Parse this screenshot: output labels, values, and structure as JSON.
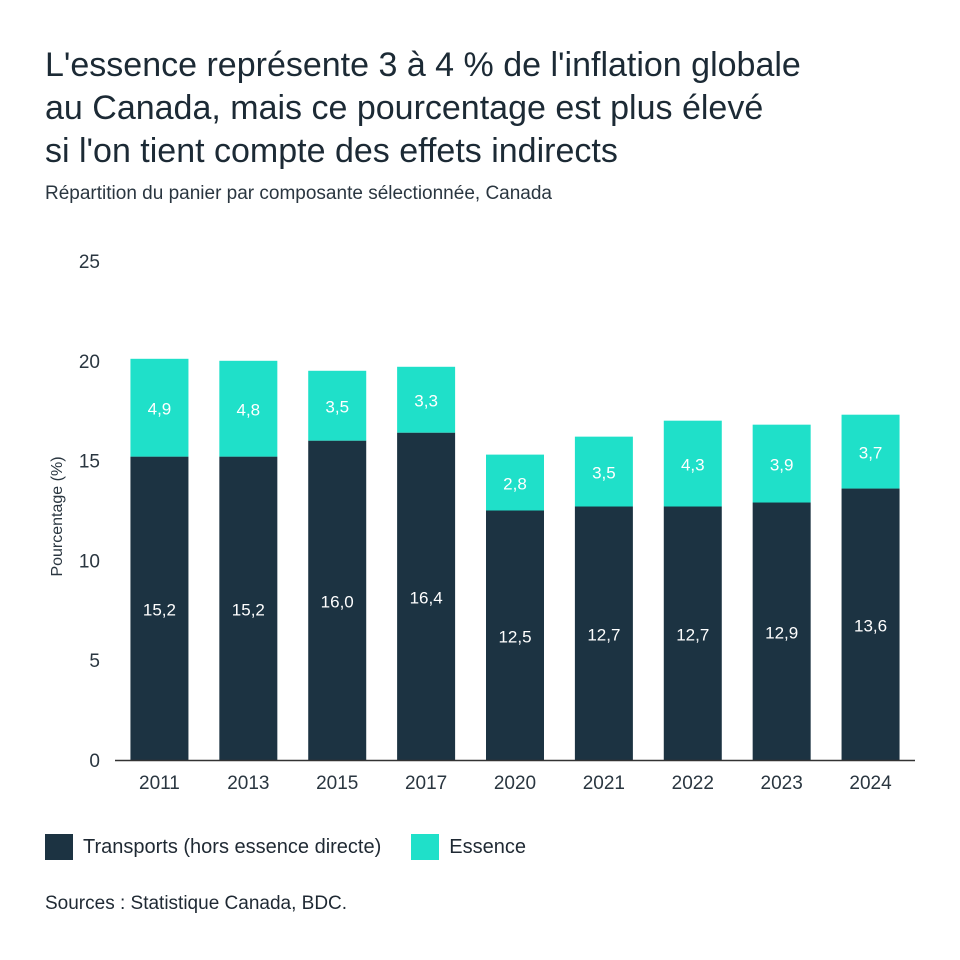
{
  "title_lines": [
    "L'essence représente 3 à 4 % de l'inflation globale",
    "au Canada, mais ce pourcentage est plus élevé",
    "si l'on tient compte des effets indirects"
  ],
  "subtitle": "Répartition du panier par composante sélectionnée, Canada",
  "source": "Sources : Statistique Canada, BDC.",
  "colors": {
    "transports": "#1c3342",
    "essence": "#1fe0c9",
    "axis": "#333333"
  },
  "chart_data": {
    "type": "bar",
    "stacked": true,
    "categories": [
      "2011",
      "2013",
      "2015",
      "2017",
      "2020",
      "2021",
      "2022",
      "2023",
      "2024"
    ],
    "series": [
      {
        "name": "Transports (hors essence directe)",
        "values": [
          15.2,
          15.2,
          16.0,
          16.4,
          12.5,
          12.7,
          12.7,
          12.9,
          13.6
        ],
        "labels": [
          "15,2",
          "15,2",
          "16,0",
          "16,4",
          "12,5",
          "12,7",
          "12,7",
          "12,9",
          "13,6"
        ]
      },
      {
        "name": "Essence",
        "values": [
          4.9,
          4.8,
          3.5,
          3.3,
          2.8,
          3.5,
          4.3,
          3.9,
          3.7
        ],
        "labels": [
          "4,9",
          "4,8",
          "3,5",
          "3,3",
          "2,8",
          "3,5",
          "4,3",
          "3,9",
          "3,7"
        ]
      }
    ],
    "ylabel": "Pourcentage (%)",
    "ylim": [
      0,
      25
    ],
    "yticks": [
      "0",
      "5",
      "10",
      "15",
      "20",
      "25"
    ],
    "grid": false,
    "legend_position": "bottom-left"
  }
}
